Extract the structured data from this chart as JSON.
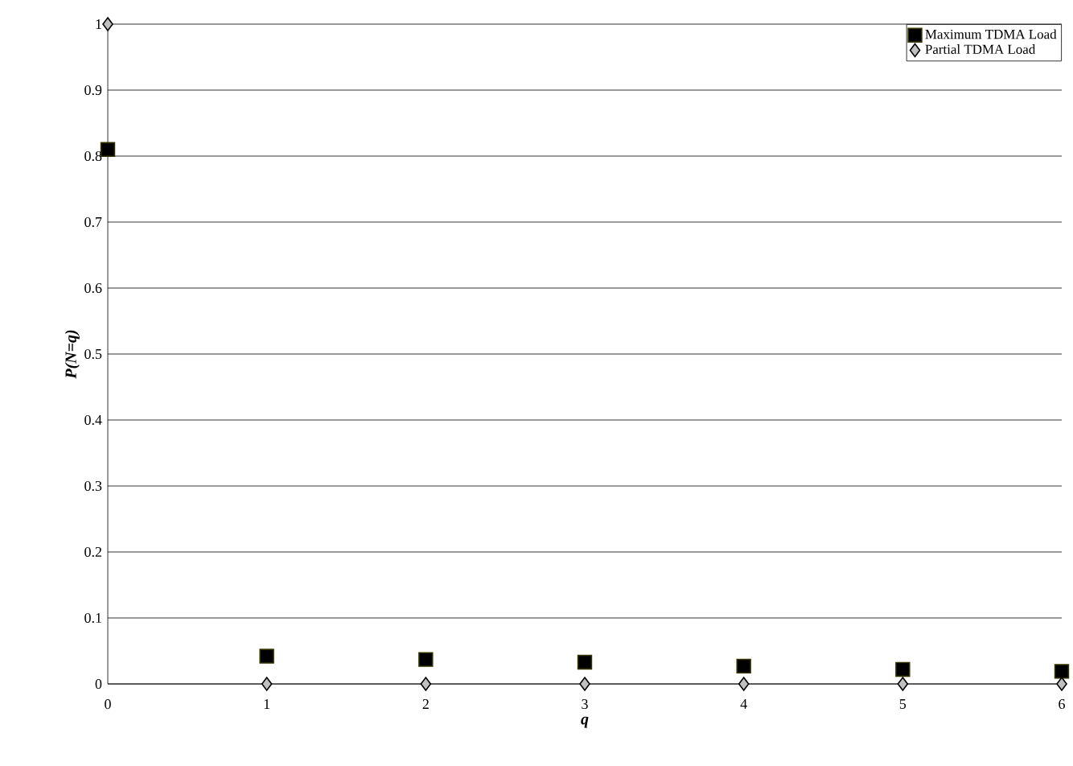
{
  "chart_data": {
    "type": "scatter",
    "xlabel": "q",
    "ylabel": "P(N=q)",
    "x": [
      0,
      1,
      2,
      3,
      4,
      5,
      6
    ],
    "series": [
      {
        "name": "Maximum TDMA Load",
        "color": "#000000",
        "marker": "square",
        "values": [
          0.81,
          0.042,
          0.037,
          0.033,
          0.027,
          0.022,
          0.019
        ]
      },
      {
        "name": "Partial TDMA Load",
        "color": "#c0c0c0",
        "marker": "diamond",
        "values": [
          1,
          0,
          0,
          0,
          0,
          0,
          0
        ]
      }
    ],
    "xlim": [
      0,
      6
    ],
    "ylim": [
      0,
      1
    ],
    "xticks": [
      0,
      1,
      2,
      3,
      4,
      5,
      6
    ],
    "yticks": [
      0,
      0.1,
      0.2,
      0.3,
      0.4,
      0.5,
      0.6,
      0.7,
      0.8,
      0.9,
      1
    ],
    "grid": "y",
    "legend": "top right"
  }
}
